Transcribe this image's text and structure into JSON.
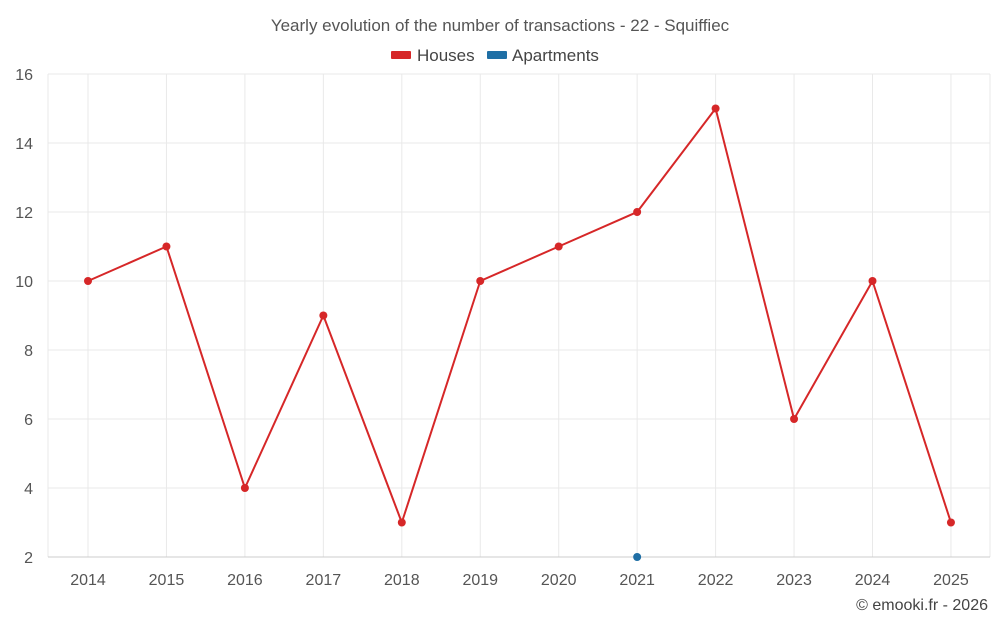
{
  "chart_data": {
    "type": "line",
    "title": "Yearly evolution of the number of transactions - 22 - Squiffiec",
    "categories": [
      "2014",
      "2015",
      "2016",
      "2017",
      "2018",
      "2019",
      "2020",
      "2021",
      "2022",
      "2023",
      "2024",
      "2025"
    ],
    "series": [
      {
        "name": "Houses",
        "color": "#d62728",
        "values": [
          10,
          11,
          4,
          9,
          3,
          10,
          11,
          12,
          15,
          6,
          10,
          3
        ]
      },
      {
        "name": "Apartments",
        "color": "#1f6fa5",
        "values": [
          null,
          null,
          null,
          null,
          null,
          null,
          null,
          2,
          null,
          null,
          null,
          null
        ]
      }
    ],
    "ylim": [
      2,
      16
    ],
    "yticks": [
      2,
      4,
      6,
      8,
      10,
      12,
      14,
      16
    ],
    "xlabel": "",
    "ylabel": "",
    "grid": true,
    "legend": "top-center"
  },
  "credit": "© emooki.fr - 2026"
}
